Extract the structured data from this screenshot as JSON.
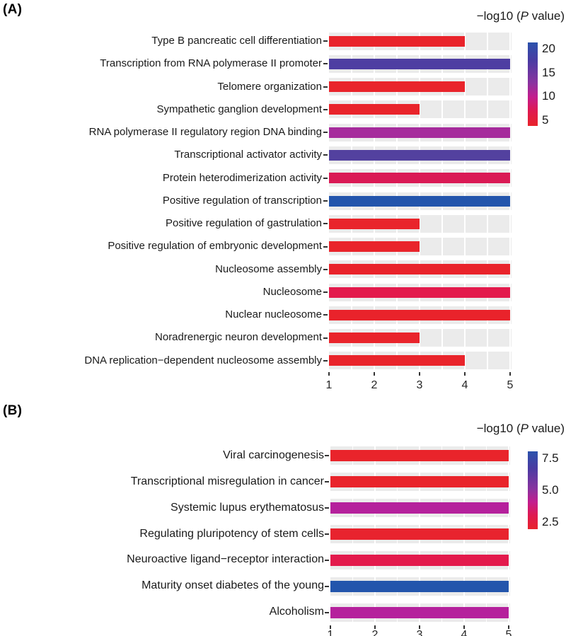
{
  "chart_data": [
    {
      "type": "bar",
      "orientation": "horizontal",
      "panel": "(A)",
      "legend_title": "−log10 (P value)",
      "legend_title_prefix": "−log10 (",
      "legend_title_italic": "P",
      "legend_title_suffix": " value)",
      "legend_position": "right-top",
      "legend_ticks": [
        "20",
        "15",
        "10",
        "5"
      ],
      "legend_gradient": [
        "#2B52AC",
        "#4A3BA2",
        "#8833A0",
        "#C21D8E",
        "#DF1950",
        "#E8232B"
      ],
      "categories": [
        "Type B pancreatic cell differentiation",
        "Transcription from RNA polymerase II promoter",
        "Telomere organization",
        "Sympathetic ganglion development",
        "RNA polymerase II regulatory region DNA binding",
        "Transcriptional activator activity",
        "Protein heterodimerization activity",
        "Positive regulation of transcription",
        "Positive regulation of gastrulation",
        "Positive regulation of embryonic development",
        "Nucleosome assembly",
        "Nucleosome",
        "Nuclear nucleosome",
        "Noradrenergic neuron development",
        "DNA replication−dependent nucleosome assembly"
      ],
      "values": [
        4,
        5,
        4,
        3,
        5,
        5,
        5,
        5,
        3,
        3,
        5,
        5,
        5,
        3,
        4
      ],
      "bar_colors": [
        "#E9242B",
        "#4E3EA2",
        "#E9242B",
        "#E9242B",
        "#A62B9C",
        "#53419F",
        "#DA1A55",
        "#2355AC",
        "#E9242B",
        "#E9242B",
        "#E9232B",
        "#E31A4C",
        "#E9232B",
        "#E9242B",
        "#E9242B"
      ],
      "neg_log10_p_est": [
        4.5,
        17,
        4.5,
        4,
        12,
        17,
        8,
        21,
        4,
        4,
        5,
        7.5,
        5,
        4,
        4.5
      ],
      "xlim": [
        1,
        5
      ],
      "x_ticks": [
        "1",
        "2",
        "3",
        "4",
        "5"
      ],
      "bars_start_at": 1,
      "grid": true,
      "plot_bg": "#EBEBEB",
      "xlabel": "",
      "ylabel": ""
    },
    {
      "type": "bar",
      "orientation": "horizontal",
      "panel": "(B)",
      "legend_title": "−log10 (P value)",
      "legend_title_prefix": "−log10 (",
      "legend_title_italic": "P",
      "legend_title_suffix": " value)",
      "legend_position": "right-top",
      "legend_ticks": [
        "7.5",
        "5.0",
        "2.5"
      ],
      "legend_gradient": [
        "#2B52AC",
        "#4A3BA2",
        "#8833A0",
        "#C21D8E",
        "#DF1950",
        "#E8232B"
      ],
      "categories": [
        "Viral carcinogenesis",
        "Transcriptional misregulation in cancer",
        "Systemic lupus erythematosus",
        "Regulating pluripotency of stem cells",
        "Neuroactive ligand−receptor interaction",
        "Maturity onset diabetes of the young",
        "Alcoholism"
      ],
      "values": [
        5,
        5,
        5,
        5,
        5,
        5,
        5
      ],
      "bar_colors": [
        "#E9242B",
        "#E9242B",
        "#B5219C",
        "#E8232E",
        "#E31A4C",
        "#2355AC",
        "#B5219C"
      ],
      "neg_log10_p_est": [
        2.6,
        2.6,
        5,
        3,
        3.5,
        8,
        5
      ],
      "xlim": [
        1,
        5
      ],
      "x_ticks": [
        "1",
        "2",
        "3",
        "4",
        "5"
      ],
      "bars_start_at": 1,
      "grid": true,
      "plot_bg": "#EBEBEB",
      "xlabel": "",
      "ylabel": ""
    }
  ]
}
